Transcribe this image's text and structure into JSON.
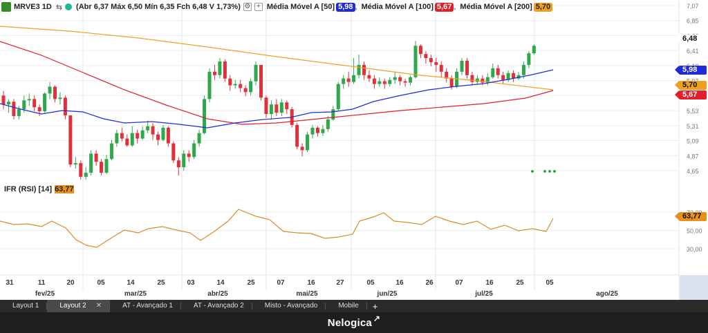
{
  "header": {
    "symbol": "MRVE3 1D",
    "ohlc": "(Abr 6,37 Máx 6,50 Mín 6,35 Fch 6,48 V 1,73%)",
    "ma50_label": "Média Móvel A [50]",
    "ma50_value": "5,98",
    "ma100_label": "Média Móvel A [100]",
    "ma100_value": "5,67",
    "ma200_label": "Média Móvel A [200]",
    "ma200_value": "5,70",
    "sep": ","
  },
  "rsi": {
    "label": "IFR (RSI) [14]",
    "value": "63,77"
  },
  "colors": {
    "ma50": "#1f2bd6",
    "ma100": "#e0202a",
    "ma200": "#f0a020",
    "up": "#2ea84a",
    "down": "#e0303a",
    "rsi": "#d98a2a"
  },
  "price_axis": {
    "ticks": [
      "7,07",
      "6,85",
      "6,63",
      "6,41",
      "6,19",
      "5,97",
      "5,75",
      "5,53",
      "5,31",
      "5,09",
      "4,87",
      "4,65"
    ],
    "last_price": "6,48",
    "ma50_badge": "5,98",
    "ma200_badge": "5,70",
    "ma100_badge": "5,67"
  },
  "rsi_axis": {
    "ticks": [
      "70,00",
      "50,00",
      "30,00"
    ],
    "badge": "63,77"
  },
  "time_axis": {
    "day_labels": [
      "31",
      "11",
      "20",
      "05",
      "14",
      "25",
      "03",
      "14",
      "25",
      "07",
      "16",
      "27",
      "05",
      "16",
      "26",
      "07",
      "16",
      "25",
      "05"
    ],
    "month_labels": [
      "fev/25",
      "mar/25",
      "abr/25",
      "mai/25",
      "jun/25",
      "jul/25",
      "ago/25"
    ]
  },
  "tabs": [
    {
      "label": "Layout 1",
      "active": false
    },
    {
      "label": "Layout 2",
      "active": true,
      "close": "✕"
    },
    {
      "label": "AT - Avançado 1",
      "active": false
    },
    {
      "label": "AT - Avançado 2",
      "active": false
    },
    {
      "label": "Misto - Avançado",
      "active": false
    },
    {
      "label": "Mobile",
      "active": false
    }
  ],
  "add_tab": "+",
  "brand": "Nelogica"
}
